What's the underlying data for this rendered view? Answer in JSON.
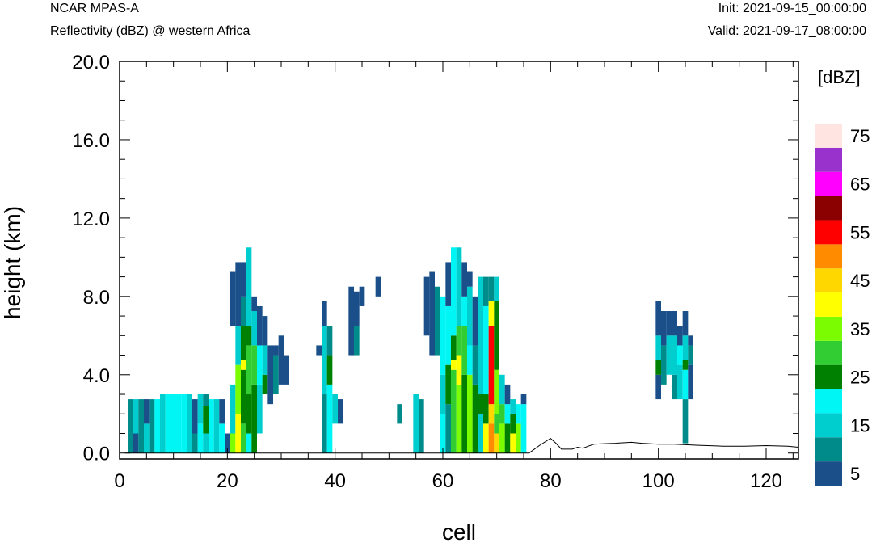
{
  "header": {
    "model": "NCAR MPAS-A",
    "field": "Reflectivity (dBZ) @ western Africa",
    "init": "Init: 2021-09-15_00:00:00",
    "valid": "Valid: 2021-09-17_08:00:00"
  },
  "chart_data": {
    "type": "heatmap",
    "xlabel": "cell",
    "ylabel": "height (km)",
    "xlim": [
      0,
      126
    ],
    "ylim": [
      -0.3,
      20
    ],
    "xticks": [
      "0",
      "20",
      "40",
      "60",
      "80",
      "100",
      "120"
    ],
    "yticks": [
      "0.0",
      "4.0",
      "8.0",
      "12.0",
      "16.0",
      "20.0"
    ],
    "ytick_values": [
      0,
      4,
      8,
      12,
      16,
      20
    ],
    "xtick_values": [
      0,
      20,
      40,
      60,
      80,
      100,
      120
    ],
    "colorbar": {
      "title": "[dBZ]",
      "labels": [
        "5",
        "15",
        "25",
        "35",
        "45",
        "55",
        "65",
        "75"
      ],
      "levels": [
        5,
        10,
        15,
        20,
        25,
        30,
        35,
        40,
        45,
        50,
        55,
        60,
        65,
        70,
        75
      ],
      "colors": [
        "#1a4f8a",
        "#008b8b",
        "#00cdcd",
        "#00f5f5",
        "#008000",
        "#32cd32",
        "#7cfc00",
        "#ffff00",
        "#ffd700",
        "#ff8c00",
        "#ff0000",
        "#8b0000",
        "#ff00ff",
        "#9932cc",
        "#ffe4e1"
      ]
    },
    "terrain": {
      "x": [
        76,
        78,
        80,
        81,
        82,
        84,
        85,
        86,
        87,
        88,
        90,
        92,
        95,
        97,
        100,
        103,
        107,
        112,
        116,
        120,
        124,
        126
      ],
      "y": [
        0.0,
        0.4,
        0.75,
        0.5,
        0.2,
        0.2,
        0.3,
        0.25,
        0.35,
        0.45,
        0.48,
        0.5,
        0.55,
        0.5,
        0.45,
        0.45,
        0.4,
        0.35,
        0.35,
        0.38,
        0.35,
        0.3
      ]
    },
    "grid": false,
    "legend": "right colorbar",
    "reflectivity_columns": [
      {
        "x": 2,
        "cells": [
          [
            0,
            2.75,
            10
          ]
        ]
      },
      {
        "x": 3,
        "cells": [
          [
            0,
            1,
            5
          ],
          [
            1,
            2.75,
            15
          ]
        ]
      },
      {
        "x": 4,
        "cells": [
          [
            0,
            2.75,
            10
          ]
        ]
      },
      {
        "x": 5,
        "cells": [
          [
            0,
            1.5,
            15
          ],
          [
            1.5,
            2.75,
            5
          ]
        ]
      },
      {
        "x": 6,
        "cells": [
          [
            0,
            2.75,
            10
          ]
        ]
      },
      {
        "x": 7,
        "cells": [
          [
            0,
            2.75,
            20
          ]
        ]
      },
      {
        "x": 8,
        "cells": [
          [
            0,
            3,
            15
          ]
        ]
      },
      {
        "x": 9,
        "cells": [
          [
            0,
            3,
            20
          ]
        ]
      },
      {
        "x": 10,
        "cells": [
          [
            0,
            3,
            20
          ]
        ]
      },
      {
        "x": 11,
        "cells": [
          [
            0,
            3,
            20
          ]
        ]
      },
      {
        "x": 12,
        "cells": [
          [
            0,
            3,
            20
          ]
        ]
      },
      {
        "x": 13,
        "cells": [
          [
            0,
            3,
            15
          ]
        ]
      },
      {
        "x": 14,
        "cells": [
          [
            0,
            1,
            10
          ],
          [
            1,
            2.75,
            5
          ]
        ]
      },
      {
        "x": 15,
        "cells": [
          [
            0,
            1.5,
            20
          ],
          [
            1.5,
            3,
            15
          ]
        ]
      },
      {
        "x": 16,
        "cells": [
          [
            0,
            1,
            15
          ],
          [
            1,
            2.4,
            25
          ],
          [
            2.4,
            3,
            10
          ]
        ]
      },
      {
        "x": 17,
        "cells": [
          [
            0,
            2.75,
            20
          ]
        ]
      },
      {
        "x": 18,
        "cells": [
          [
            0,
            2.75,
            15
          ]
        ]
      },
      {
        "x": 19,
        "cells": [
          [
            0,
            1.5,
            20
          ],
          [
            1.5,
            2.75,
            5
          ]
        ]
      },
      {
        "x": 20,
        "cells": [
          [
            0,
            1,
            5
          ]
        ]
      },
      {
        "x": 21,
        "cells": [
          [
            0,
            1,
            35
          ],
          [
            1,
            3.5,
            15
          ],
          [
            6.5,
            9.25,
            5
          ]
        ]
      },
      {
        "x": 22,
        "cells": [
          [
            0,
            2,
            40
          ],
          [
            2,
            4.5,
            35
          ],
          [
            4.5,
            6.5,
            15
          ],
          [
            6.5,
            9.75,
            5
          ]
        ]
      },
      {
        "x": 23,
        "cells": [
          [
            0,
            1.5,
            30
          ],
          [
            1.5,
            4.25,
            25
          ],
          [
            4.25,
            4.75,
            40
          ],
          [
            4.75,
            6.5,
            25
          ],
          [
            6.5,
            8,
            10
          ],
          [
            8,
            9.75,
            5
          ]
        ]
      },
      {
        "x": 24,
        "cells": [
          [
            0,
            1,
            20
          ],
          [
            1,
            3,
            25
          ],
          [
            3,
            5.5,
            30
          ],
          [
            5.5,
            6.5,
            25
          ],
          [
            6.5,
            10.5,
            15
          ]
        ]
      },
      {
        "x": 25,
        "cells": [
          [
            0,
            3.5,
            25
          ],
          [
            3.5,
            5.5,
            30
          ],
          [
            5.5,
            7.25,
            15
          ],
          [
            7.25,
            8,
            5
          ]
        ]
      },
      {
        "x": 26,
        "cells": [
          [
            1,
            3.5,
            15
          ],
          [
            3.5,
            5.5,
            20
          ],
          [
            5.5,
            7.5,
            5
          ]
        ]
      },
      {
        "x": 27,
        "cells": [
          [
            3,
            4,
            25
          ],
          [
            4,
            5.5,
            15
          ],
          [
            5.5,
            7,
            5
          ]
        ]
      },
      {
        "x": 28,
        "cells": [
          [
            2.5,
            5.5,
            5
          ]
        ]
      },
      {
        "x": 29,
        "cells": [
          [
            3,
            5,
            10
          ],
          [
            5,
            5.5,
            5
          ]
        ]
      },
      {
        "x": 30,
        "cells": [
          [
            3.5,
            6,
            5
          ]
        ]
      },
      {
        "x": 31,
        "cells": [
          [
            3.5,
            5,
            5
          ]
        ]
      },
      {
        "x": 37,
        "cells": [
          [
            5,
            5.5,
            5
          ]
        ]
      },
      {
        "x": 38,
        "cells": [
          [
            0,
            3,
            10
          ],
          [
            3,
            6.5,
            15
          ],
          [
            6.5,
            7.75,
            5
          ]
        ]
      },
      {
        "x": 39,
        "cells": [
          [
            0,
            3.5,
            20
          ],
          [
            3.5,
            5,
            25
          ],
          [
            5,
            6.5,
            10
          ]
        ]
      },
      {
        "x": 40,
        "cells": [
          [
            1.5,
            3,
            15
          ]
        ]
      },
      {
        "x": 41,
        "cells": [
          [
            1.5,
            2.75,
            5
          ]
        ]
      },
      {
        "x": 43,
        "cells": [
          [
            5,
            8.5,
            5
          ]
        ]
      },
      {
        "x": 44,
        "cells": [
          [
            5,
            6.5,
            10
          ],
          [
            6.5,
            8.25,
            5
          ]
        ]
      },
      {
        "x": 45,
        "cells": [
          [
            7.5,
            8.5,
            5
          ]
        ]
      },
      {
        "x": 48,
        "cells": [
          [
            8,
            9,
            5
          ]
        ]
      },
      {
        "x": 52,
        "cells": [
          [
            1.5,
            2.5,
            10
          ]
        ]
      },
      {
        "x": 55,
        "cells": [
          [
            0,
            3,
            15
          ]
        ]
      },
      {
        "x": 56,
        "cells": [
          [
            0,
            2.75,
            10
          ]
        ]
      },
      {
        "x": 57,
        "cells": [
          [
            6,
            9,
            5
          ]
        ]
      },
      {
        "x": 58,
        "cells": [
          [
            5,
            9.25,
            5
          ]
        ]
      },
      {
        "x": 59,
        "cells": [
          [
            5,
            8.5,
            10
          ]
        ]
      },
      {
        "x": 60,
        "cells": [
          [
            0,
            2,
            20
          ],
          [
            2,
            4,
            15
          ],
          [
            4,
            8,
            20
          ]
        ]
      },
      {
        "x": 61,
        "cells": [
          [
            0,
            2.5,
            10
          ],
          [
            2.5,
            4.5,
            25
          ],
          [
            4.5,
            7.5,
            20
          ],
          [
            7.5,
            9.75,
            5
          ]
        ]
      },
      {
        "x": 62,
        "cells": [
          [
            0,
            4.25,
            30
          ],
          [
            4.25,
            4.75,
            40
          ],
          [
            4.75,
            6,
            25
          ],
          [
            6,
            10.5,
            20
          ]
        ]
      },
      {
        "x": 63,
        "cells": [
          [
            0,
            3.5,
            35
          ],
          [
            3.5,
            5,
            40
          ],
          [
            5,
            6.5,
            30
          ],
          [
            6.5,
            10.5,
            15
          ]
        ]
      },
      {
        "x": 64,
        "cells": [
          [
            0,
            4,
            25
          ],
          [
            4,
            6.5,
            30
          ],
          [
            6.5,
            8,
            20
          ],
          [
            8,
            9.75,
            5
          ]
        ]
      },
      {
        "x": 65,
        "cells": [
          [
            0,
            4,
            35
          ],
          [
            4,
            5.5,
            20
          ],
          [
            5.5,
            8.5,
            15
          ],
          [
            8.5,
            9.25,
            5
          ]
        ]
      },
      {
        "x": 66,
        "cells": [
          [
            0,
            3.5,
            25
          ],
          [
            3.5,
            5.5,
            10
          ],
          [
            5.5,
            8,
            5
          ]
        ]
      },
      {
        "x": 67,
        "cells": [
          [
            0,
            2,
            15
          ],
          [
            2,
            3,
            25
          ],
          [
            3,
            9,
            15
          ]
        ]
      },
      {
        "x": 68,
        "cells": [
          [
            0,
            1.5,
            40
          ],
          [
            1.5,
            3,
            25
          ],
          [
            3,
            7.5,
            20
          ],
          [
            7.5,
            9,
            10
          ]
        ]
      },
      {
        "x": 69,
        "cells": [
          [
            0,
            1.5,
            50
          ],
          [
            1.5,
            2.5,
            45
          ],
          [
            2.5,
            6.5,
            55
          ],
          [
            6.5,
            7.75,
            40
          ],
          [
            7.75,
            9,
            10
          ]
        ]
      },
      {
        "x": 70,
        "cells": [
          [
            0,
            1,
            45
          ],
          [
            1,
            2,
            30
          ],
          [
            2,
            4.25,
            35
          ],
          [
            4.25,
            7.75,
            25
          ],
          [
            7.75,
            9,
            15
          ]
        ]
      },
      {
        "x": 71,
        "cells": [
          [
            0,
            1.5,
            35
          ],
          [
            1.5,
            2.5,
            30
          ],
          [
            2.5,
            4,
            15
          ]
        ]
      },
      {
        "x": 72,
        "cells": [
          [
            0,
            1.5,
            25
          ],
          [
            1.5,
            2.5,
            20
          ],
          [
            2.5,
            3.5,
            5
          ]
        ]
      },
      {
        "x": 73,
        "cells": [
          [
            0,
            1,
            40
          ],
          [
            1,
            2,
            25
          ],
          [
            2,
            2.75,
            15
          ]
        ]
      },
      {
        "x": 74,
        "cells": [
          [
            0,
            1.5,
            35
          ],
          [
            1.5,
            2.5,
            20
          ]
        ]
      },
      {
        "x": 75,
        "cells": [
          [
            0,
            2.5,
            20
          ],
          [
            2.5,
            3,
            5
          ]
        ]
      },
      {
        "x": 100,
        "cells": [
          [
            2.75,
            4,
            5
          ],
          [
            4,
            4.75,
            25
          ],
          [
            4.75,
            6,
            15
          ],
          [
            6,
            7.75,
            5
          ]
        ]
      },
      {
        "x": 101,
        "cells": [
          [
            3.5,
            5.5,
            10
          ],
          [
            5.5,
            7.25,
            5
          ]
        ]
      },
      {
        "x": 102,
        "cells": [
          [
            4,
            6,
            15
          ],
          [
            6,
            7.25,
            5
          ]
        ]
      },
      {
        "x": 103,
        "cells": [
          [
            2.75,
            4,
            10
          ],
          [
            4,
            6,
            15
          ],
          [
            6,
            7.25,
            5
          ]
        ]
      },
      {
        "x": 104,
        "cells": [
          [
            2.75,
            4.5,
            15
          ],
          [
            4.5,
            5.5,
            20
          ],
          [
            5.5,
            6.5,
            5
          ]
        ]
      },
      {
        "x": 105,
        "cells": [
          [
            0.5,
            2.75,
            10
          ],
          [
            2.75,
            4.25,
            20
          ],
          [
            4.25,
            4.75,
            25
          ],
          [
            4.75,
            6,
            15
          ],
          [
            6,
            7.25,
            5
          ]
        ]
      },
      {
        "x": 106,
        "cells": [
          [
            2.75,
            4.5,
            5
          ],
          [
            4.5,
            5.5,
            10
          ],
          [
            5.5,
            6,
            5
          ]
        ]
      }
    ]
  }
}
